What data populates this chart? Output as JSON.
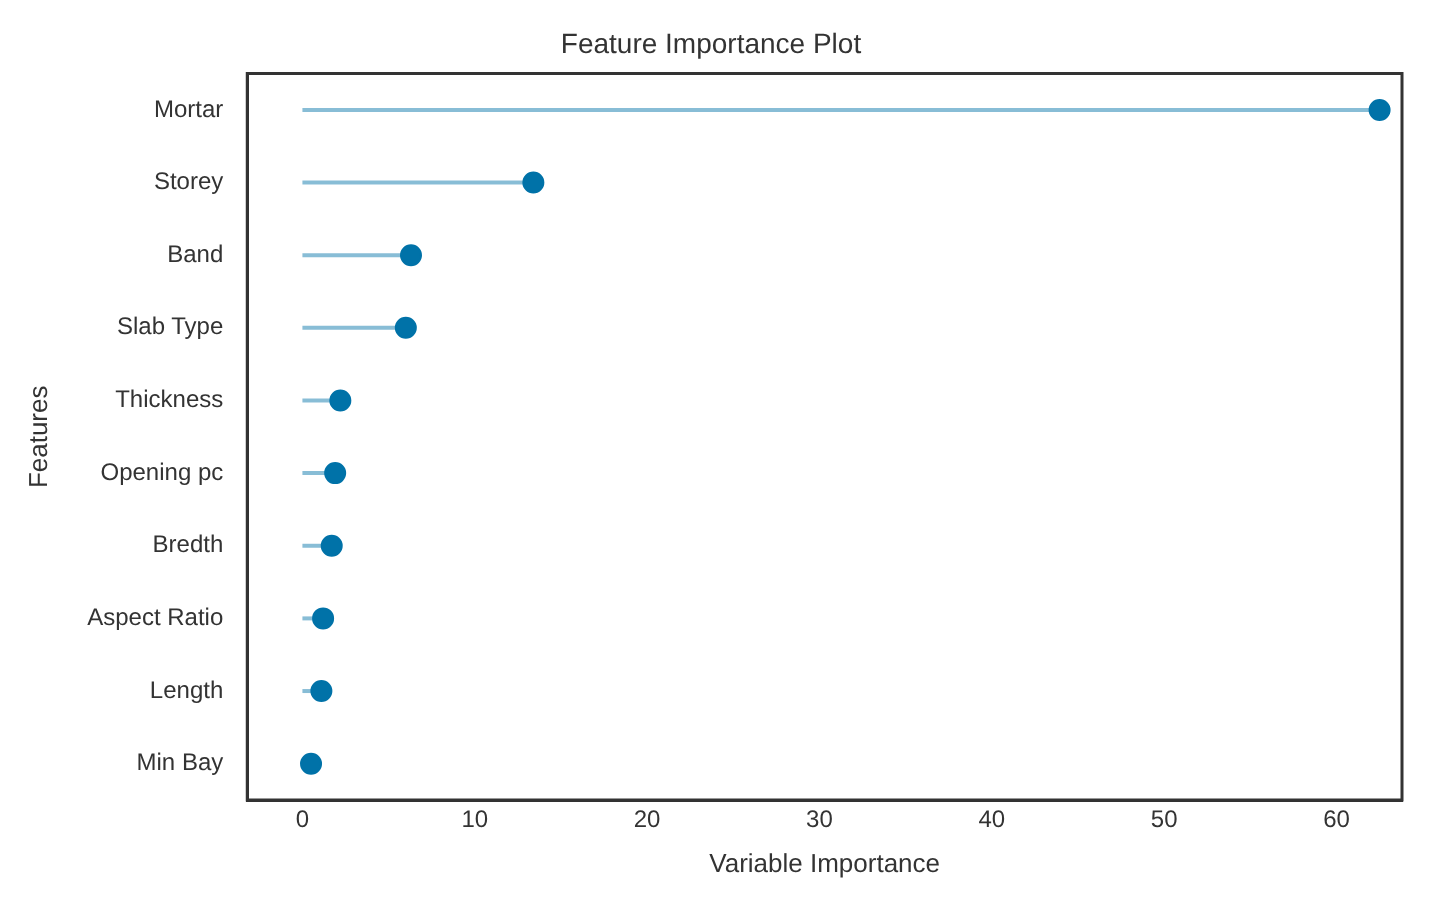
{
  "chart_data": {
    "type": "lollipop",
    "orientation": "horizontal",
    "title": "Feature Importance Plot",
    "xlabel": "Variable Importance",
    "ylabel": "Features",
    "categories": [
      "Mortar",
      "Storey",
      "Band",
      "Slab Type",
      "Thickness",
      "Opening pc",
      "Bredth",
      "Aspect Ratio",
      "Length",
      "Min Bay"
    ],
    "values": [
      62.5,
      13.4,
      6.3,
      6.0,
      2.2,
      1.9,
      1.7,
      1.2,
      1.1,
      0.5
    ],
    "color": "#0072a8",
    "xlim": [
      -3.2,
      63.8
    ],
    "xticks": [
      0,
      10,
      20,
      30,
      40,
      50,
      60
    ],
    "grid": false,
    "legend": false,
    "marker": "circle"
  }
}
